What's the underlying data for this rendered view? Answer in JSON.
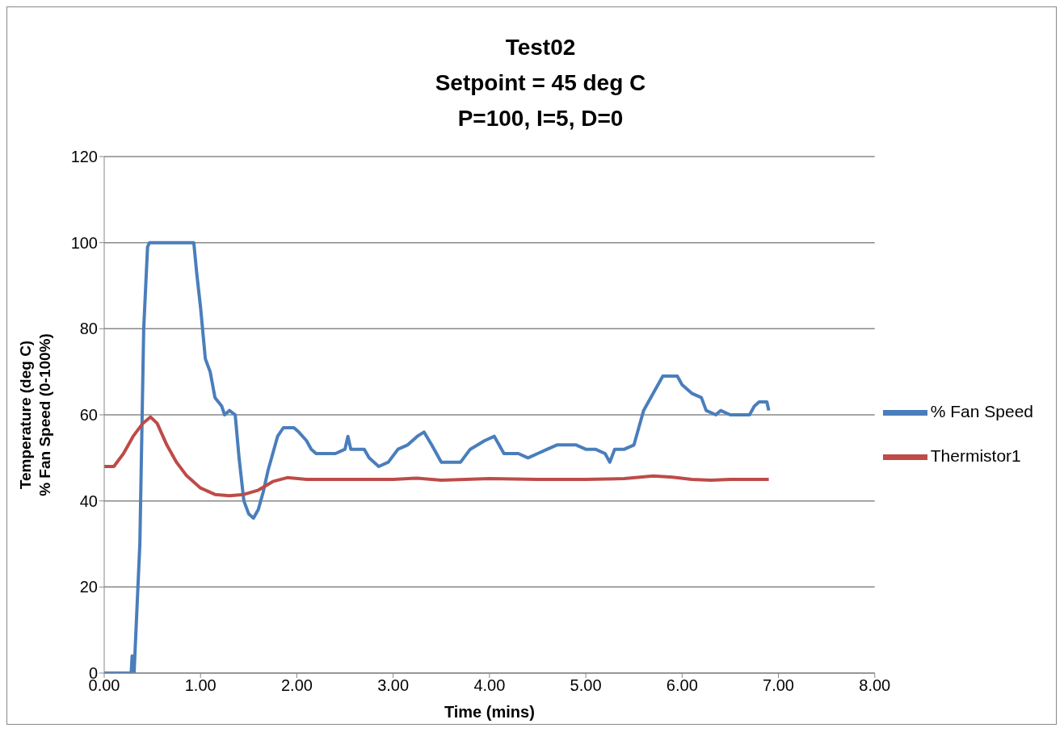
{
  "chart_data": {
    "type": "line",
    "title": "Test02\nSetpoint = 45 deg C\nP=100, I=5, D=0",
    "xlabel": "Time (mins)",
    "ylabel": "Temperature (deg C)\n% Fan Speed (0-100%)",
    "xlim": [
      0,
      8
    ],
    "xticks": [
      {
        "value": 0,
        "label": "0.00"
      },
      {
        "value": 1,
        "label": "1.00"
      },
      {
        "value": 2,
        "label": "2.00"
      },
      {
        "value": 3,
        "label": "3.00"
      },
      {
        "value": 4,
        "label": "4.00"
      },
      {
        "value": 5,
        "label": "5.00"
      },
      {
        "value": 6,
        "label": "6.00"
      },
      {
        "value": 7,
        "label": "7.00"
      },
      {
        "value": 8,
        "label": "8.00"
      }
    ],
    "ylim": [
      0,
      120
    ],
    "yticks": [
      0,
      20,
      40,
      60,
      80,
      100,
      120
    ],
    "grid": "y",
    "legend": "right",
    "marker": "none",
    "line_style": "solid",
    "series": [
      {
        "name": "% Fan Speed",
        "color": "#4a7ebb",
        "x": [
          0,
          0.28,
          0.29,
          0.31,
          0.33,
          0.37,
          0.41,
          0.45,
          0.47,
          0.93,
          0.96,
          1.0,
          1.05,
          1.1,
          1.15,
          1.22,
          1.25,
          1.3,
          1.36,
          1.4,
          1.45,
          1.5,
          1.55,
          1.6,
          1.65,
          1.7,
          1.75,
          1.8,
          1.86,
          1.97,
          2.02,
          2.1,
          2.15,
          2.2,
          2.4,
          2.5,
          2.53,
          2.56,
          2.7,
          2.75,
          2.85,
          2.95,
          3.05,
          3.15,
          3.25,
          3.32,
          3.4,
          3.5,
          3.6,
          3.7,
          3.8,
          3.95,
          4.05,
          4.1,
          4.15,
          4.3,
          4.4,
          4.5,
          4.6,
          4.7,
          4.9,
          5.0,
          5.1,
          5.2,
          5.25,
          5.3,
          5.4,
          5.5,
          5.55,
          5.6,
          5.7,
          5.8,
          5.95,
          6.0,
          6.1,
          6.2,
          6.25,
          6.35,
          6.4,
          6.5,
          6.7,
          6.75,
          6.8,
          6.88,
          6.9
        ],
        "values": [
          0,
          0,
          4,
          0,
          10,
          30,
          80,
          99,
          100,
          100,
          93,
          85,
          73,
          70,
          64,
          62,
          60,
          61,
          60,
          50,
          40,
          37,
          36,
          38,
          42,
          47,
          51,
          55,
          57,
          57,
          56,
          54,
          52,
          51,
          51,
          52,
          55,
          52,
          52,
          50,
          48,
          49,
          52,
          53,
          55,
          56,
          53,
          49,
          49,
          49,
          52,
          54,
          55,
          53,
          51,
          51,
          50,
          51,
          52,
          53,
          53,
          52,
          52,
          51,
          49,
          52,
          52,
          53,
          57,
          61,
          65,
          69,
          69,
          67,
          65,
          64,
          61,
          60,
          61,
          60,
          60,
          62,
          63,
          63,
          61
        ]
      },
      {
        "name": "Thermistor1",
        "color": "#be4b48",
        "x": [
          0,
          0.1,
          0.2,
          0.3,
          0.4,
          0.48,
          0.55,
          0.65,
          0.75,
          0.85,
          1.0,
          1.15,
          1.3,
          1.45,
          1.6,
          1.75,
          1.9,
          2.1,
          2.5,
          3.0,
          3.25,
          3.5,
          4.0,
          4.5,
          5.0,
          5.4,
          5.7,
          5.9,
          6.1,
          6.3,
          6.5,
          6.9
        ],
        "values": [
          48,
          48,
          51,
          55,
          58,
          59.5,
          58,
          53,
          49,
          46,
          43,
          41.5,
          41.2,
          41.5,
          42.5,
          44.5,
          45.4,
          45,
          45,
          45,
          45.3,
          44.8,
          45.2,
          45,
          45,
          45.2,
          45.8,
          45.5,
          45,
          44.8,
          45,
          45
        ]
      }
    ]
  }
}
